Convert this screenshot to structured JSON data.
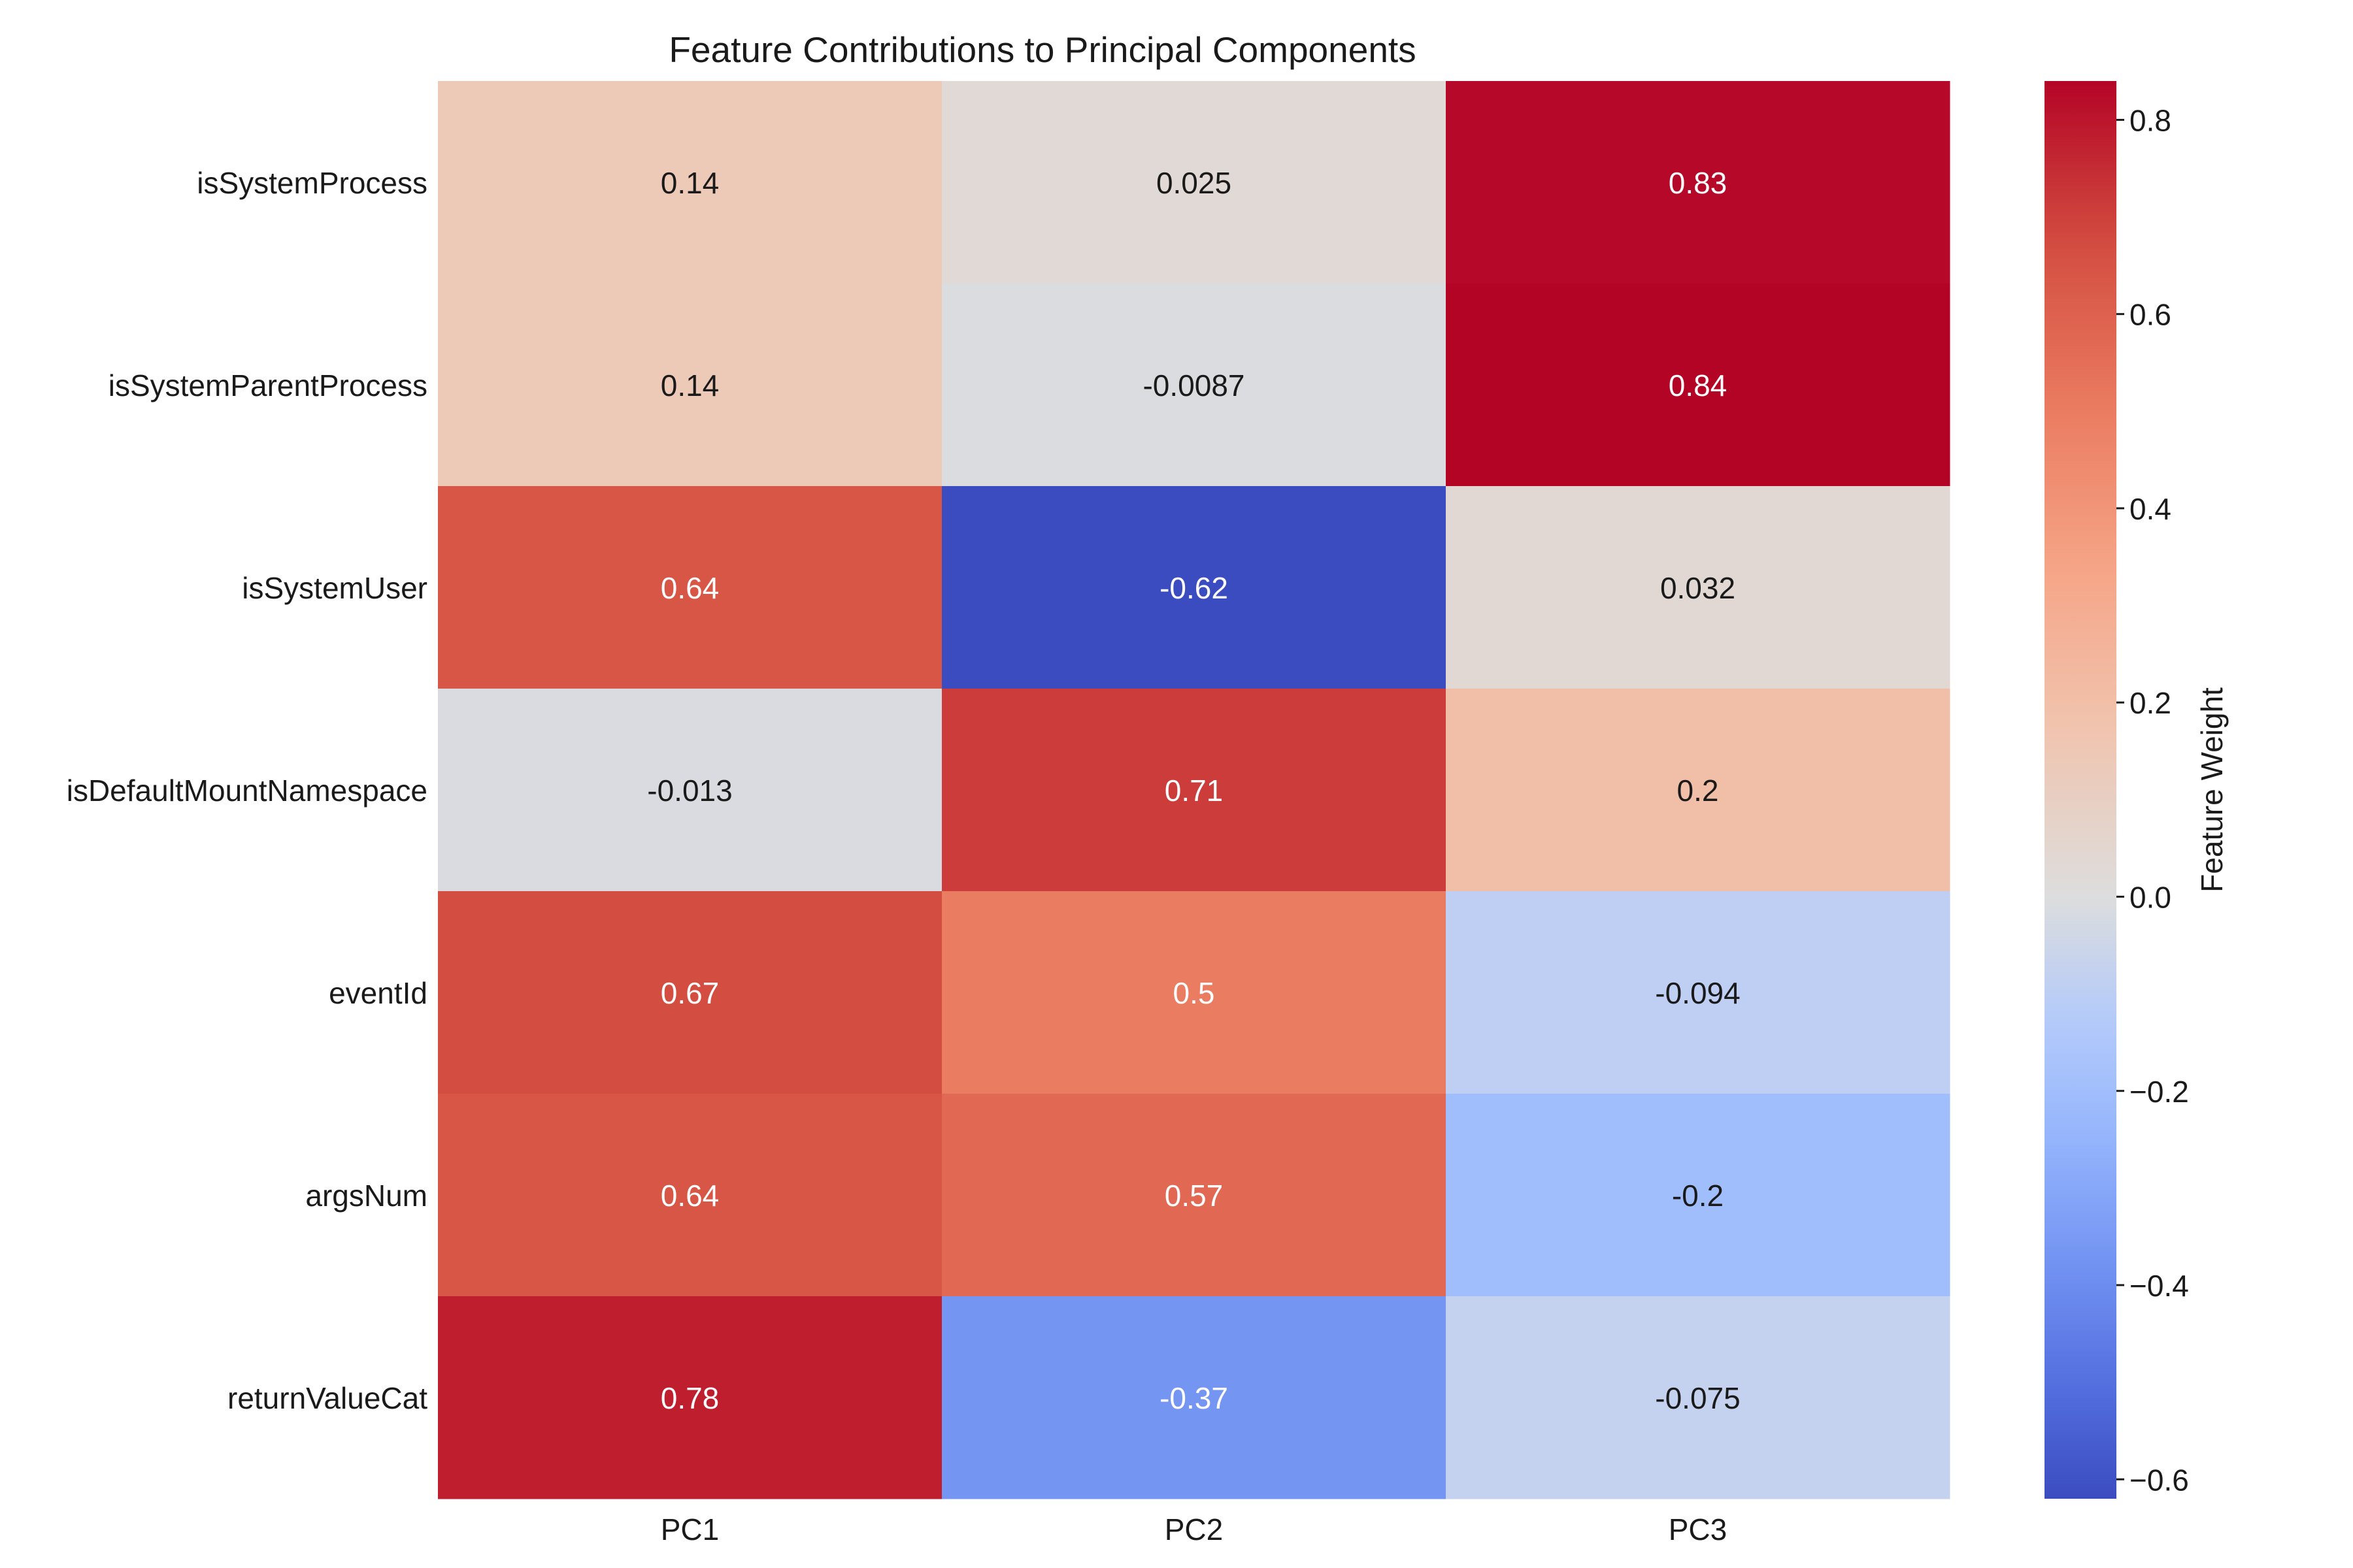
{
  "chart_data": {
    "type": "heatmap",
    "title": "Feature Contributions to Principal Components",
    "xlabel": "",
    "ylabel": "",
    "columns": [
      "PC1",
      "PC2",
      "PC3"
    ],
    "rows": [
      "isSystemProcess",
      "isSystemParentProcess",
      "isSystemUser",
      "isDefaultMountNamespace",
      "eventId",
      "argsNum",
      "returnValueCat"
    ],
    "values": [
      [
        0.14,
        0.025,
        0.83
      ],
      [
        0.14,
        -0.0087,
        0.84
      ],
      [
        0.64,
        -0.62,
        0.032
      ],
      [
        -0.013,
        0.71,
        0.2
      ],
      [
        0.67,
        0.5,
        -0.094
      ],
      [
        0.64,
        0.57,
        -0.2
      ],
      [
        0.78,
        -0.37,
        -0.075
      ]
    ],
    "value_labels": [
      [
        "0.14",
        "0.025",
        "0.83"
      ],
      [
        "0.14",
        "-0.0087",
        "0.84"
      ],
      [
        "0.64",
        "-0.62",
        "0.032"
      ],
      [
        "-0.013",
        "0.71",
        "0.2"
      ],
      [
        "0.67",
        "0.5",
        "-0.094"
      ],
      [
        "0.64",
        "0.57",
        "-0.2"
      ],
      [
        "0.78",
        "-0.37",
        "-0.075"
      ]
    ],
    "colormap": "coolwarm",
    "colorbar": {
      "label": "Feature Weight",
      "range": [
        -0.62,
        0.84
      ],
      "ticks": [
        -0.6,
        -0.4,
        -0.2,
        0.0,
        0.2,
        0.4,
        0.6,
        0.8
      ],
      "tick_labels": [
        "−0.6",
        "−0.4",
        "−0.2",
        "0.0",
        "0.2",
        "0.4",
        "0.6",
        "0.8"
      ],
      "placement": "right"
    },
    "grid": false
  }
}
